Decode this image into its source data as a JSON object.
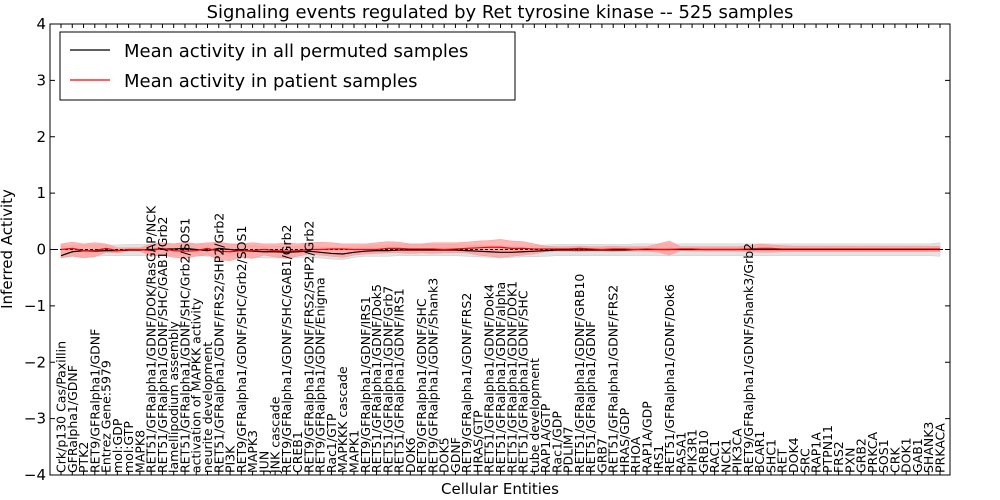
{
  "chart_data": {
    "type": "line",
    "title": "Signaling events regulated by Ret tyrosine kinase -- 525 samples",
    "xlabel": "Cellular Entities",
    "ylabel": "Inferred Activity",
    "ylim": [
      -4,
      4
    ],
    "yticks": [
      "−4",
      "−3",
      "−2",
      "−1",
      "0",
      "1",
      "2",
      "3",
      "4"
    ],
    "grid": false,
    "legend_position": "top-left",
    "categories": [
      "Crk/p130 Cas/Paxillin",
      "GFRalpha1/GDNF",
      "PTK2",
      "RET9/GFRalpha1/GDNF",
      "Entrez Gene:5979",
      "mol:GDP",
      "mol:GTP",
      "MAPK8",
      "RET51/GFRalpha1/GDNF/DOK/RasGAP/NCK",
      "RET51/GFRalpha1/GDNF/SHC/GAB1/Grb2",
      "lamellipodium assembly",
      "RET51/GFRalpha1/GDNF/SHC/Grb2/SOS1",
      "activation of MAPKK activity",
      "neurite development",
      "RET51/GFRalpha1/GDNF/FRS2/SHP2/Grb2",
      "PI3K",
      "RET9/GFRalpha1/GDNF/SHC/Grb2/SOS1",
      "MAPK3",
      "JUN",
      "JNK cascade",
      "RET9/GFRalpha1/GDNF/SHC/GAB1/Grb2",
      "CREB1",
      "RET9/GFRalpha1/GDNF/FRS2/SHP2/Grb2",
      "RET9/GFRalpha1/GDNF/Enigma",
      "Rac1/GTP",
      "MAPKKK cascade",
      "MAPK1",
      "RET9/GFRalpha1/GDNF/IRS1",
      "RET51/GFRalpha1/GDNF/Dok5",
      "RET51/GFRalpha1/GDNF/Grb7",
      "RET51/GFRalpha1/GDNF/IRS1",
      "DOK6",
      "RET9/GFRalpha1/GDNF/SHC",
      "RET9/GFRalpha1/GDNF/Shank3",
      "DOK5",
      "GDNF",
      "RET9/GFRalpha1/GDNF/FRS2",
      "HRAS/GTP",
      "RET51/GFRalpha1/GDNF/Dok4",
      "RET51/GFRalpha1/GDNF/alpha",
      "RET51/GFRalpha1/GDNF/DOK1",
      "RET51/GFRalpha1/GDNF/SHC",
      "tube development",
      "RAP1A/GTP",
      "Rac1/GDP",
      "PDLIM7",
      "RET51/GFRalpha1/GDNF/GRB10",
      "RET51/GFRalpha1/GDNF",
      "GRB7",
      "RET51/GFRalpha1/GDNF/FRS2",
      "HRAS/GDP",
      "RHOA",
      "RAP1A/GDP",
      "IRS1",
      "RET51/GFRalpha1/GDNF/Dok6",
      "RASA1",
      "PIK3R1",
      "GRB10",
      "RAC1",
      "NCK1",
      "PIK3CA",
      "RET9/GFRalpha1/GDNF/Shank3/Grb2",
      "BCAR1",
      "SHC1",
      "RET",
      "DOK4",
      "SRC",
      "RAP1A",
      "PTPN11",
      "FRS2",
      "PXN",
      "GRB2",
      "PRKCA",
      "SOS1",
      "CRK",
      "DOK1",
      "GAB1",
      "SHANK3",
      "PRKACA"
    ],
    "series": [
      {
        "name": "Mean activity in all permuted samples",
        "color": "#000000",
        "values": [
          -0.11,
          -0.04,
          -0.02,
          -0.03,
          -0.02,
          -0.02,
          -0.01,
          -0.01,
          0.0,
          0.01,
          0.01,
          0.02,
          0.0,
          -0.02,
          0.02,
          0.0,
          -0.02,
          -0.03,
          -0.04,
          -0.04,
          -0.05,
          -0.04,
          -0.03,
          -0.05,
          -0.07,
          -0.08,
          -0.05,
          -0.03,
          -0.02,
          -0.02,
          -0.01,
          -0.01,
          -0.01,
          -0.01,
          -0.01,
          -0.01,
          -0.02,
          -0.03,
          -0.04,
          -0.05,
          -0.05,
          -0.04,
          -0.03,
          -0.02,
          -0.01,
          -0.01,
          -0.01,
          -0.01,
          -0.01,
          -0.01,
          -0.01,
          0.0,
          0.0,
          0.0,
          0.0,
          0.0,
          0.0,
          0.0,
          0.0,
          0.0,
          0.0,
          0.0,
          0.0,
          0.0,
          0.0,
          0.0,
          0.0,
          0.0,
          0.0,
          0.0,
          0.0,
          0.0,
          0.0,
          0.0,
          0.0,
          0.0,
          0.0,
          0.0,
          0.0
        ]
      },
      {
        "name": "Mean activity in patient samples",
        "color": "#ff0000",
        "values": [
          0.0,
          0.02,
          -0.02,
          -0.02,
          0.02,
          -0.02,
          0.0,
          0.0,
          -0.02,
          0.02,
          -0.02,
          -0.03,
          -0.02,
          0.02,
          -0.03,
          -0.04,
          -0.02,
          -0.02,
          0.0,
          -0.02,
          -0.03,
          -0.02,
          0.0,
          0.0,
          0.01,
          0.01,
          0.0,
          0.0,
          0.0,
          0.02,
          0.02,
          0.01,
          0.01,
          0.01,
          0.0,
          0.01,
          0.02,
          0.03,
          0.04,
          0.04,
          0.02,
          0.02,
          0.01,
          0.01,
          0.01,
          0.01,
          0.02,
          0.01,
          0.0,
          0.01,
          0.01,
          0.0,
          0.01,
          0.0,
          0.0,
          0.01,
          0.01,
          0.0,
          0.0,
          0.0,
          0.0,
          0.01,
          0.02,
          0.02,
          0.01,
          0.01,
          0.01,
          0.01,
          0.01,
          0.01,
          0.01,
          0.01,
          0.01,
          0.01,
          0.01,
          0.01,
          0.01,
          0.01,
          0.01
        ]
      }
    ],
    "bands": [
      {
        "name": "permuted-spread",
        "color": "#cccccc",
        "lower": [
          -0.14,
          -0.12,
          -0.12,
          -0.12,
          -0.11,
          -0.11,
          -0.11,
          -0.11,
          -0.11,
          -0.1,
          -0.1,
          -0.1,
          -0.1,
          -0.12,
          -0.1,
          -0.1,
          -0.12,
          -0.14,
          -0.15,
          -0.15,
          -0.15,
          -0.14,
          -0.14,
          -0.15,
          -0.17,
          -0.18,
          -0.14,
          -0.12,
          -0.12,
          -0.12,
          -0.11,
          -0.11,
          -0.11,
          -0.11,
          -0.11,
          -0.11,
          -0.12,
          -0.13,
          -0.14,
          -0.15,
          -0.14,
          -0.13,
          -0.13,
          -0.12,
          -0.11,
          -0.11,
          -0.11,
          -0.11,
          -0.11,
          -0.11,
          -0.11,
          -0.11,
          -0.11,
          -0.11,
          -0.11,
          -0.11,
          -0.11,
          -0.11,
          -0.11,
          -0.11,
          -0.11,
          -0.11,
          -0.11,
          -0.11,
          -0.11,
          -0.11,
          -0.11,
          -0.11,
          -0.11,
          -0.11,
          -0.11,
          -0.11,
          -0.11,
          -0.11,
          -0.11,
          -0.11,
          -0.11,
          -0.11,
          -0.12
        ],
        "upper": [
          0.06,
          0.07,
          0.08,
          0.08,
          0.08,
          0.08,
          0.09,
          0.09,
          0.09,
          0.1,
          0.1,
          0.1,
          0.1,
          0.08,
          0.1,
          0.1,
          0.09,
          0.07,
          0.06,
          0.06,
          0.05,
          0.06,
          0.07,
          0.05,
          0.04,
          0.03,
          0.05,
          0.07,
          0.08,
          0.08,
          0.09,
          0.09,
          0.09,
          0.09,
          0.09,
          0.09,
          0.08,
          0.07,
          0.06,
          0.05,
          0.05,
          0.06,
          0.07,
          0.08,
          0.09,
          0.09,
          0.09,
          0.09,
          0.09,
          0.09,
          0.09,
          0.1,
          0.1,
          0.1,
          0.1,
          0.1,
          0.1,
          0.1,
          0.1,
          0.1,
          0.1,
          0.1,
          0.1,
          0.1,
          0.1,
          0.1,
          0.1,
          0.1,
          0.1,
          0.1,
          0.1,
          0.1,
          0.1,
          0.1,
          0.1,
          0.1,
          0.1,
          0.1,
          0.12
        ]
      },
      {
        "name": "patient-spread",
        "color": "#ff9999",
        "lower": [
          -0.15,
          -0.12,
          -0.15,
          -0.13,
          -0.05,
          -0.06,
          -0.03,
          -0.03,
          -0.12,
          -0.1,
          -0.14,
          -0.16,
          -0.12,
          -0.1,
          -0.18,
          -0.2,
          -0.14,
          -0.16,
          -0.1,
          -0.13,
          -0.16,
          -0.12,
          -0.08,
          -0.1,
          -0.12,
          -0.14,
          -0.1,
          -0.08,
          -0.07,
          -0.06,
          -0.06,
          -0.07,
          -0.06,
          -0.07,
          -0.06,
          -0.06,
          -0.06,
          -0.1,
          -0.12,
          -0.14,
          -0.12,
          -0.1,
          -0.08,
          -0.04,
          -0.03,
          -0.03,
          -0.04,
          -0.03,
          -0.03,
          -0.04,
          -0.03,
          -0.03,
          -0.03,
          -0.05,
          -0.1,
          -0.02,
          -0.03,
          -0.03,
          -0.03,
          -0.03,
          -0.03,
          -0.04,
          -0.05,
          -0.05,
          -0.04,
          -0.04,
          -0.04,
          -0.04,
          -0.04,
          -0.04,
          -0.04,
          -0.04,
          -0.04,
          -0.04,
          -0.04,
          -0.04,
          -0.04,
          -0.04,
          -0.04
        ],
        "upper": [
          0.1,
          0.13,
          0.1,
          0.12,
          0.1,
          0.03,
          0.03,
          0.03,
          0.1,
          0.12,
          0.1,
          0.13,
          0.1,
          0.12,
          0.13,
          0.1,
          0.1,
          0.12,
          0.1,
          0.1,
          0.12,
          0.1,
          0.12,
          0.13,
          0.12,
          0.1,
          0.1,
          0.1,
          0.12,
          0.14,
          0.13,
          0.1,
          0.1,
          0.12,
          0.12,
          0.12,
          0.13,
          0.15,
          0.16,
          0.18,
          0.15,
          0.14,
          0.1,
          0.06,
          0.05,
          0.05,
          0.06,
          0.05,
          0.05,
          0.06,
          0.05,
          0.05,
          0.05,
          0.1,
          0.15,
          0.05,
          0.05,
          0.05,
          0.05,
          0.05,
          0.05,
          0.06,
          0.1,
          0.08,
          0.07,
          0.06,
          0.06,
          0.06,
          0.06,
          0.06,
          0.06,
          0.06,
          0.06,
          0.06,
          0.06,
          0.06,
          0.06,
          0.06,
          0.06
        ]
      }
    ],
    "zero_line": "dashed"
  }
}
